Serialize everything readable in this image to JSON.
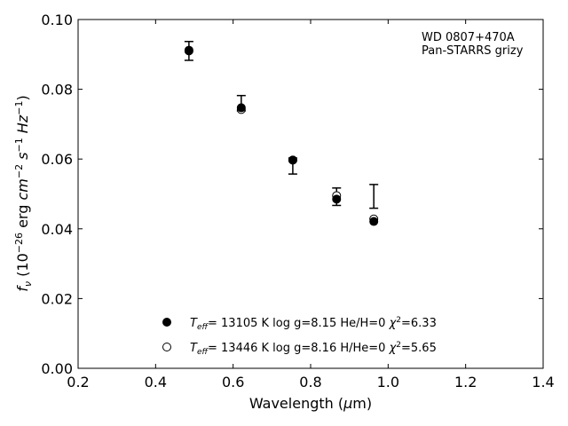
{
  "chart_data": {
    "type": "scatter",
    "xlabel_main": "Wavelength (",
    "xlabel_mu": "μ",
    "xlabel_end": "m)",
    "ylabel": {
      "f": "f",
      "nu": "ν",
      "open": " (10",
      "exp1": "−26",
      "erg": " erg ",
      "cm": "cm",
      "exp2": "−2",
      "s": " s",
      "exp3": "−1",
      "hz": " Hz",
      "exp4": "−1",
      "close": ")"
    },
    "xlim": [
      0.2,
      1.4
    ],
    "ylim": [
      0.0,
      0.1
    ],
    "xticks": [
      0.2,
      0.4,
      0.6,
      0.8,
      1.0,
      1.2,
      1.4
    ],
    "xtick_labels": [
      "0.2",
      "0.4",
      "0.6",
      "0.8",
      "1.0",
      "1.2",
      "1.4"
    ],
    "yticks": [
      0.0,
      0.02,
      0.04,
      0.06,
      0.08,
      0.1
    ],
    "ytick_labels": [
      "0.00",
      "0.02",
      "0.04",
      "0.06",
      "0.08",
      "0.10"
    ],
    "annotation": [
      "WD 0807+470A",
      "Pan-STARRS grizy"
    ],
    "legend_position": "lower-center",
    "observed": [
      {
        "x": 0.486,
        "y": 0.091,
        "yerr_low": 0.0883,
        "yerr_high": 0.0937
      },
      {
        "x": 0.621,
        "y": 0.076,
        "yerr_low": 0.0738,
        "yerr_high": 0.0782
      },
      {
        "x": 0.754,
        "y": 0.058,
        "yerr_low": 0.0557,
        "yerr_high": 0.0603
      },
      {
        "x": 0.867,
        "y": 0.0492,
        "yerr_low": 0.0467,
        "yerr_high": 0.0517
      },
      {
        "x": 0.963,
        "y": 0.0493,
        "yerr_low": 0.0459,
        "yerr_high": 0.0527
      }
    ],
    "series": [
      {
        "marker": "filled-circle",
        "label": {
          "t": "T",
          "sub": "eff",
          "rest": "= 13105 K  log g=8.15  He/H=0  ",
          "chi": "χ",
          "sup": "2",
          "val": "=6.33"
        },
        "x": [
          0.486,
          0.621,
          0.754,
          0.867,
          0.963
        ],
        "y": [
          0.091,
          0.0747,
          0.0597,
          0.0485,
          0.0421
        ]
      },
      {
        "marker": "open-circle",
        "label": {
          "t": "T",
          "sub": "eff",
          "rest": "= 13446 K  log g=8.16  H/He=0  ",
          "chi": "χ",
          "sup": "2",
          "val": "=5.65"
        },
        "x": [
          0.486,
          0.621,
          0.754,
          0.867,
          0.963
        ],
        "y": [
          0.0912,
          0.0742,
          0.0597,
          0.0495,
          0.0428
        ]
      }
    ]
  }
}
